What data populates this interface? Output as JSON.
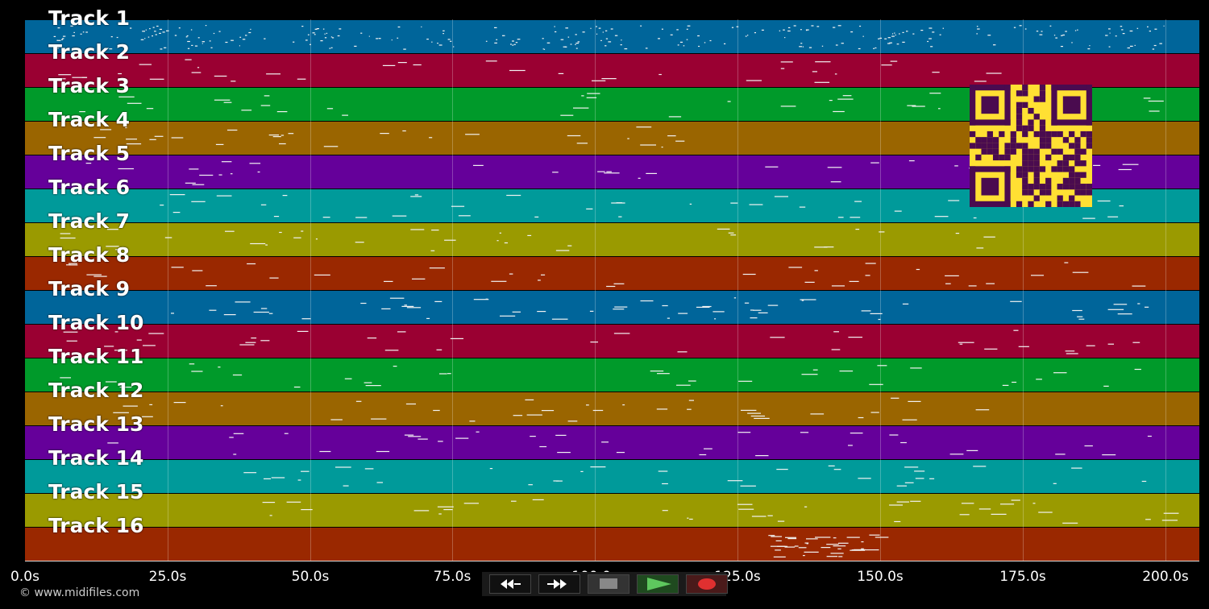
{
  "tracks": [
    {
      "label": "Track 1",
      "color": "#00659a"
    },
    {
      "label": "Track 2",
      "color": "#9a0032"
    },
    {
      "label": "Track 3",
      "color": "#009a2a"
    },
    {
      "label": "Track 4",
      "color": "#9a6500"
    },
    {
      "label": "Track 5",
      "color": "#65009a"
    },
    {
      "label": "Track 6",
      "color": "#009a9a"
    },
    {
      "label": "Track 7",
      "color": "#9a9a00"
    },
    {
      "label": "Track 8",
      "color": "#9a2800"
    },
    {
      "label": "Track 9",
      "color": "#00659a"
    },
    {
      "label": "Track 10",
      "color": "#9a0032"
    },
    {
      "label": "Track 11",
      "color": "#009a2a"
    },
    {
      "label": "Track 12",
      "color": "#9a6500"
    },
    {
      "label": "Track 13",
      "color": "#65009a"
    },
    {
      "label": "Track 14",
      "color": "#009a9a"
    },
    {
      "label": "Track 15",
      "color": "#9a9a00"
    },
    {
      "label": "Track 16",
      "color": "#9a2800"
    }
  ],
  "timeline": {
    "ticks": [
      "0.0s",
      "25.0s",
      "50.0s",
      "75.0s",
      "100.0s",
      "125.0s",
      "150.0s",
      "175.0s",
      "200.0s"
    ],
    "tick_values": [
      0,
      25,
      50,
      75,
      100,
      125,
      150,
      175,
      200
    ],
    "range_seconds": [
      0,
      206
    ]
  },
  "transport": {
    "rewind_icon": "rewind-icon",
    "forward_icon": "fast-forward-icon",
    "stop_icon": "stop-icon",
    "play_icon": "play-icon",
    "record_icon": "record-icon"
  },
  "footer": {
    "copyright": "© www.midifiles.com"
  },
  "qr_color": "#ffe033"
}
